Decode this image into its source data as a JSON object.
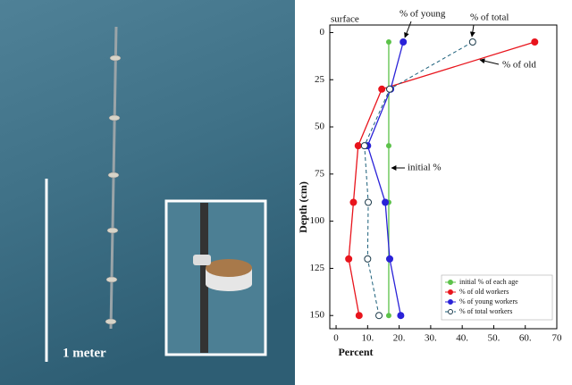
{
  "photo": {
    "scale_label": "1 meter"
  },
  "chart_data": {
    "type": "line",
    "xlabel": "Percent",
    "ylabel": "Depth (cm)",
    "xlim": [
      -2,
      70
    ],
    "ylim": [
      -4,
      157
    ],
    "y_inverted": true,
    "xticks": [
      0,
      {
        "value": 10,
        "label": "10."
      },
      {
        "value": 20,
        "label": "20."
      },
      {
        "value": 30,
        "label": "30."
      },
      {
        "value": 40,
        "label": "40."
      },
      {
        "value": 50,
        "label": "50."
      },
      {
        "value": 60,
        "label": "60."
      },
      70
    ],
    "yticks": [
      0,
      25,
      50,
      75,
      100,
      125,
      150
    ],
    "depth": [
      5,
      30,
      60,
      90,
      120,
      150
    ],
    "legend": "lower right",
    "series": [
      {
        "name": "initial % of each age",
        "color": "#5cc24a",
        "marker": "filled",
        "style": "solid",
        "values": [
          16.7,
          16.7,
          16.7,
          16.7,
          16.7,
          16.7
        ]
      },
      {
        "name": "% of old workers",
        "color": "#e8141c",
        "marker": "filled",
        "style": "solid",
        "values": [
          63,
          14.5,
          7,
          5.5,
          4,
          7.3
        ]
      },
      {
        "name": "% of young workers",
        "color": "#2a22d8",
        "marker": "filled",
        "style": "solid",
        "values": [
          21.3,
          17.3,
          10,
          15.6,
          17,
          20.5
        ]
      },
      {
        "name": "% of total workers",
        "color": "#1b5f7a",
        "marker": "open",
        "style": "dashed",
        "values": [
          43.3,
          17,
          9,
          10.2,
          10,
          13.6
        ]
      }
    ],
    "annotations": [
      "surface",
      "% of young",
      "% of total",
      "% of old",
      "initial %"
    ]
  }
}
